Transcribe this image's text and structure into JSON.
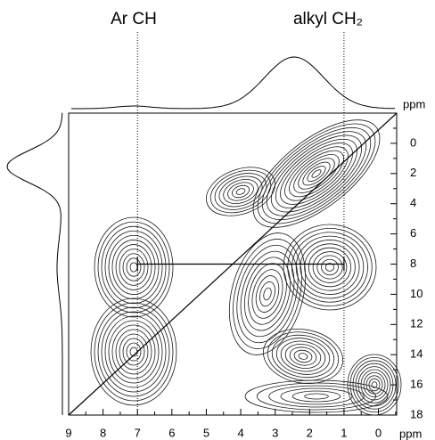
{
  "chart_data": {
    "type": "contour",
    "annotations": [
      "Ar CH",
      "alkyl CH₂"
    ],
    "xlabel": "ppm",
    "ylabel": "ppm",
    "xlim": [
      9,
      -0.53
    ],
    "xticks": [
      9,
      8,
      7,
      6,
      5,
      4,
      3,
      2,
      1,
      0
    ],
    "ylim": [
      -2,
      18
    ],
    "yticks": [
      0,
      2,
      4,
      6,
      8,
      10,
      12,
      14,
      16,
      18
    ],
    "guides_x": [
      7,
      1
    ],
    "cross_peaks": {
      "x": [
        7,
        1
      ],
      "y": [
        8,
        8
      ]
    }
  }
}
